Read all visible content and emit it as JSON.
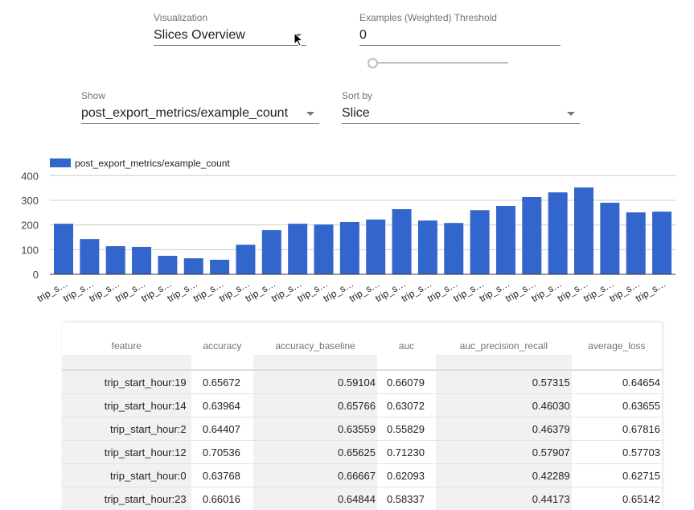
{
  "controls": {
    "visualization": {
      "label": "Visualization",
      "value": "Slices Overview"
    },
    "threshold": {
      "label": "Examples (Weighted) Threshold",
      "value": "0",
      "slider_value": 0
    },
    "show": {
      "label": "Show",
      "value": "post_export_metrics/example_count"
    },
    "sort_by": {
      "label": "Sort by",
      "value": "Slice"
    }
  },
  "chart_data": {
    "type": "bar",
    "title": "",
    "xlabel": "",
    "ylabel": "",
    "ylim": [
      0,
      400
    ],
    "yticks": [
      "0",
      "100",
      "200",
      "300",
      "400"
    ],
    "grid": true,
    "legend_position": "top-left",
    "color": "#3366cc",
    "categories": [
      "trip_s…",
      "trip_s…",
      "trip_s…",
      "trip_s…",
      "trip_s…",
      "trip_s…",
      "trip_s…",
      "trip_s…",
      "trip_s…",
      "trip_s…",
      "trip_s…",
      "trip_s…",
      "trip_s…",
      "trip_s…",
      "trip_s…",
      "trip_s…",
      "trip_s…",
      "trip_s…",
      "trip_s…",
      "trip_s…",
      "trip_s…",
      "trip_s…",
      "trip_s…",
      "trip_s…"
    ],
    "series": [
      {
        "name": "post_export_metrics/example_count",
        "values": [
          205,
          143,
          114,
          111,
          75,
          65,
          59,
          120,
          179,
          205,
          202,
          212,
          222,
          264,
          218,
          208,
          260,
          277,
          313,
          332,
          352,
          290,
          251,
          254
        ]
      }
    ]
  },
  "table": {
    "columns": [
      "feature",
      "accuracy",
      "accuracy_baseline",
      "auc",
      "auc_precision_recall",
      "average_loss"
    ],
    "rows": [
      [
        "trip_start_hour:19",
        "0.65672",
        "0.59104",
        "0.66079",
        "0.57315",
        "0.64654"
      ],
      [
        "trip_start_hour:14",
        "0.63964",
        "0.65766",
        "0.63072",
        "0.46030",
        "0.63655"
      ],
      [
        "trip_start_hour:2",
        "0.64407",
        "0.63559",
        "0.55829",
        "0.46379",
        "0.67816"
      ],
      [
        "trip_start_hour:12",
        "0.70536",
        "0.65625",
        "0.71230",
        "0.57907",
        "0.57703"
      ],
      [
        "trip_start_hour:0",
        "0.63768",
        "0.66667",
        "0.62093",
        "0.42289",
        "0.62715"
      ],
      [
        "trip_start_hour:23",
        "0.66016",
        "0.64844",
        "0.58337",
        "0.44173",
        "0.65142"
      ]
    ]
  }
}
